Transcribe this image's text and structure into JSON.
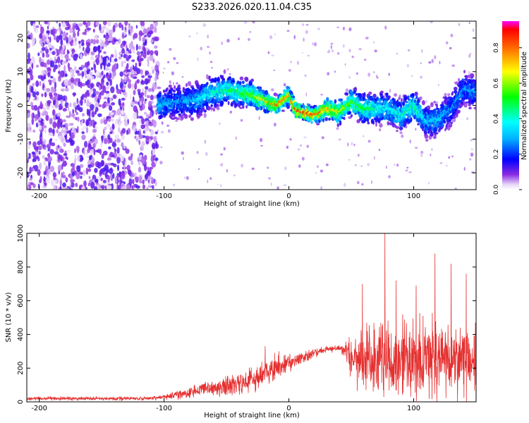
{
  "figure_title": "S233.2026.020.11.04.C35",
  "chart_data": [
    {
      "type": "heatmap",
      "title": "S233.2026.020.11.04.C35",
      "xlabel": "Height of straight line (km)",
      "ylabel": "Frequency (Hz)",
      "xlim": [
        -210,
        150
      ],
      "ylim": [
        -25,
        25
      ],
      "xticks": [
        -200,
        -100,
        0,
        100
      ],
      "xtick_labels": [
        "-200",
        "-100",
        "0",
        "100"
      ],
      "yticks": [
        -20,
        -10,
        0,
        10,
        20
      ],
      "ytick_labels": [
        "-20",
        "-10",
        "0",
        "10",
        "20"
      ],
      "colorbar": {
        "label": "Normalized spectral amplitude",
        "range": [
          0,
          0.95
        ],
        "ticks": [
          0.0,
          0.2,
          0.4,
          0.6,
          0.8
        ],
        "tick_labels": [
          "0.0",
          "0.2",
          "0.4",
          "0.6",
          "0.8"
        ]
      },
      "ridge": {
        "x": [
          -105,
          -90,
          -75,
          -60,
          -50,
          -40,
          -30,
          -20,
          -10,
          0,
          5,
          10,
          20,
          30,
          40,
          50,
          60,
          70,
          80,
          90,
          100,
          110,
          120,
          130,
          140,
          150
        ],
        "freq": [
          0,
          1,
          1.5,
          4,
          4.5,
          4,
          3,
          1.5,
          0,
          3,
          -1,
          -2,
          -3,
          -1,
          -2,
          1,
          -1,
          -1,
          -1,
          -3,
          0,
          -5,
          -4,
          -1,
          5,
          4
        ],
        "amplitude": [
          0.35,
          0.3,
          0.35,
          0.45,
          0.5,
          0.55,
          0.6,
          0.75,
          0.85,
          0.8,
          0.9,
          0.95,
          0.9,
          0.8,
          0.7,
          0.6,
          0.55,
          0.45,
          0.4,
          0.45,
          0.5,
          0.35,
          0.35,
          0.3,
          0.3,
          0.3
        ]
      },
      "noise_region": {
        "x_range": [
          -210,
          -105
        ],
        "amplitude": 0.25
      }
    },
    {
      "type": "line",
      "xlabel": "Height of straight line (km)",
      "ylabel": "SNR (10 * v/v)",
      "xlim": [
        -210,
        150
      ],
      "ylim": [
        0,
        1000
      ],
      "xticks": [
        -200,
        -100,
        0,
        100
      ],
      "xtick_labels": [
        "-200",
        "-100",
        "0",
        "100"
      ],
      "yticks": [
        0,
        200,
        400,
        600,
        800,
        1000
      ],
      "ytick_labels": [
        "0",
        "200",
        "400",
        "600",
        "800",
        "1000"
      ],
      "color": "#e53030",
      "envelope": {
        "x": [
          -210,
          -110,
          -100,
          -90,
          -80,
          -70,
          -60,
          -50,
          -40,
          -30,
          -20,
          -10,
          0,
          10,
          20,
          30,
          40,
          45,
          50,
          60,
          70,
          80,
          90,
          100,
          110,
          120,
          130,
          140,
          150
        ],
        "baseline": [
          20,
          20,
          30,
          45,
          55,
          70,
          80,
          90,
          110,
          130,
          160,
          200,
          230,
          260,
          290,
          310,
          320,
          300,
          260,
          250,
          250,
          260,
          260,
          260,
          260,
          250,
          240,
          230,
          220
        ],
        "spread": [
          15,
          15,
          25,
          40,
          50,
          60,
          70,
          80,
          100,
          110,
          120,
          120,
          90,
          60,
          40,
          30,
          25,
          60,
          200,
          260,
          300,
          320,
          320,
          330,
          330,
          320,
          310,
          300,
          290
        ]
      },
      "peaks": [
        {
          "x": 77,
          "y": 1000
        },
        {
          "x": 117,
          "y": 880
        },
        {
          "x": 130,
          "y": 820
        },
        {
          "x": 59,
          "y": 700
        },
        {
          "x": 142,
          "y": 760
        },
        {
          "x": 102,
          "y": 690
        },
        {
          "x": 86,
          "y": 720
        },
        {
          "x": -19,
          "y": 330
        },
        {
          "x": -8,
          "y": 300
        }
      ]
    }
  ]
}
